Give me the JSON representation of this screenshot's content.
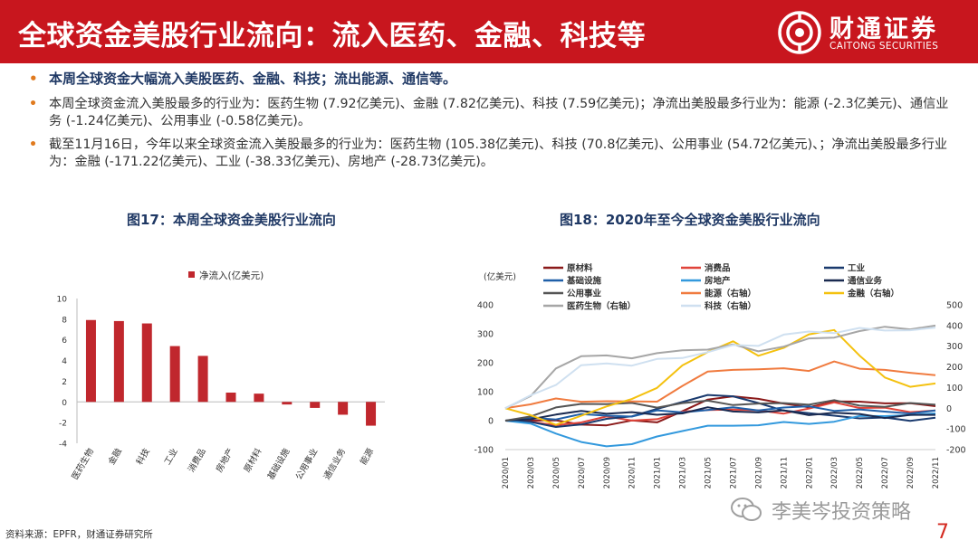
{
  "header": {
    "title": "全球资金美股行业流向：流入医药、金融、科技等",
    "logo_cn": "财通证券",
    "logo_en": "CAITONG SECURITIES"
  },
  "bullets": [
    "本周全球资金大幅流入美股医药、金融、科技；流出能源、通信等。",
    "本周全球资金流入美股最多的行业为：医药生物 (7.92亿美元)、金融 (7.82亿美元)、科技 (7.59亿美元)；净流出美股最多行业为：能源 (-2.3亿美元)、通信业务 (-1.24亿美元)、公用事业 (-0.58亿美元)。",
    "截至11月16日，今年以来全球资金流入美股最多的行业为：医药生物 (105.38亿美元)、科技 (70.8亿美元)、公用事业 (54.72亿美元)、；净流出美股最多行业为：金融 (-171.22亿美元)、工业 (-38.33亿美元)、房地产 (-28.73亿美元)。"
  ],
  "chart_data": [
    {
      "type": "bar",
      "title": "图17：本周全球资金美股行业流向",
      "legend": "净流入(亿美元)",
      "categories": [
        "医药生物",
        "金融",
        "科技",
        "工业",
        "消费品",
        "房地产",
        "原材料",
        "基础设施",
        "公用事业",
        "通信业务",
        "能源"
      ],
      "values": [
        7.92,
        7.82,
        7.59,
        5.4,
        4.45,
        0.9,
        0.8,
        -0.25,
        -0.58,
        -1.24,
        -2.3
      ],
      "ylim": [
        -4,
        10
      ],
      "yticks": [
        -4,
        -2,
        0,
        2,
        4,
        6,
        8,
        10
      ],
      "color": "#c0272d"
    },
    {
      "type": "line",
      "title": "图18：2020年至今全球资金美股行业流向",
      "ylabel_left": "(亿美元)",
      "ylim_left": [
        -100,
        400
      ],
      "yticks_left": [
        -100,
        0,
        100,
        200,
        300,
        400
      ],
      "ylim_right": [
        -200,
        500
      ],
      "yticks_right": [
        -200,
        -100,
        0,
        100,
        200,
        300,
        400,
        500
      ],
      "x_ticks": [
        "2020/01",
        "2020/03",
        "2020/05",
        "2020/07",
        "2020/09",
        "2020/11",
        "2021/01",
        "2021/03",
        "2021/05",
        "2021/07",
        "2021/09",
        "2021/11",
        "2022/01",
        "2022/03",
        "2022/05",
        "2022/07",
        "2022/09",
        "2022/11"
      ],
      "series": [
        {
          "name": "原材料",
          "axis": "left",
          "color": "#8b1a1a",
          "values": [
            0,
            5,
            -5,
            -10,
            -15,
            -5,
            0,
            30,
            70,
            90,
            70,
            60,
            50,
            60,
            70,
            60,
            55,
            50
          ]
        },
        {
          "name": "消费品",
          "axis": "left",
          "color": "#e0443a",
          "values": [
            0,
            -5,
            -20,
            0,
            10,
            0,
            10,
            25,
            40,
            40,
            30,
            30,
            40,
            60,
            50,
            40,
            30,
            35
          ]
        },
        {
          "name": "工业",
          "axis": "left",
          "color": "#1a3a6e",
          "values": [
            0,
            -10,
            -20,
            -10,
            0,
            20,
            40,
            60,
            95,
            80,
            60,
            40,
            20,
            20,
            10,
            5,
            5,
            10
          ]
        },
        {
          "name": "基础设施",
          "axis": "left",
          "color": "#1f5fa8",
          "values": [
            0,
            5,
            10,
            20,
            15,
            20,
            30,
            30,
            40,
            40,
            40,
            45,
            45,
            40,
            35,
            30,
            30,
            35
          ]
        },
        {
          "name": "房地产",
          "axis": "left",
          "color": "#3399dd",
          "values": [
            0,
            -10,
            -40,
            -80,
            -85,
            -80,
            -60,
            -30,
            -20,
            -20,
            -10,
            -10,
            -10,
            0,
            10,
            20,
            20,
            25
          ]
        },
        {
          "name": "通信业务",
          "axis": "left",
          "color": "#1a2a50",
          "values": [
            0,
            10,
            20,
            30,
            30,
            25,
            20,
            30,
            40,
            35,
            30,
            30,
            25,
            25,
            20,
            15,
            15,
            20
          ]
        },
        {
          "name": "公用事业",
          "axis": "left",
          "color": "#555555",
          "values": [
            0,
            20,
            40,
            60,
            60,
            55,
            50,
            60,
            65,
            60,
            55,
            60,
            60,
            65,
            55,
            50,
            55,
            55
          ]
        },
        {
          "name": "能源（右轴）",
          "axis": "right",
          "color": "#f07b3f",
          "values": [
            0,
            20,
            40,
            40,
            30,
            30,
            40,
            100,
            180,
            190,
            180,
            200,
            180,
            220,
            200,
            180,
            170,
            160
          ]
        },
        {
          "name": "金融（右轴）",
          "axis": "right",
          "color": "#f4c10f",
          "values": [
            0,
            -40,
            -80,
            -30,
            0,
            50,
            100,
            200,
            280,
            320,
            250,
            300,
            350,
            380,
            260,
            140,
            110,
            120
          ]
        },
        {
          "name": "医药生物（右轴）",
          "axis": "right",
          "color": "#a6a6a6",
          "values": [
            0,
            50,
            200,
            250,
            250,
            250,
            260,
            280,
            290,
            300,
            280,
            300,
            330,
            350,
            370,
            390,
            390,
            400
          ]
        },
        {
          "name": "科技（右轴）",
          "axis": "right",
          "color": "#cfe0f0",
          "values": [
            0,
            60,
            120,
            200,
            220,
            210,
            230,
            250,
            270,
            300,
            310,
            350,
            370,
            370,
            380,
            380,
            380,
            390
          ]
        }
      ]
    }
  ],
  "footer": {
    "source": "资料来源：EPFR，财通证券研究所",
    "watermark": "李美岑投资策略",
    "page_number": "7"
  }
}
